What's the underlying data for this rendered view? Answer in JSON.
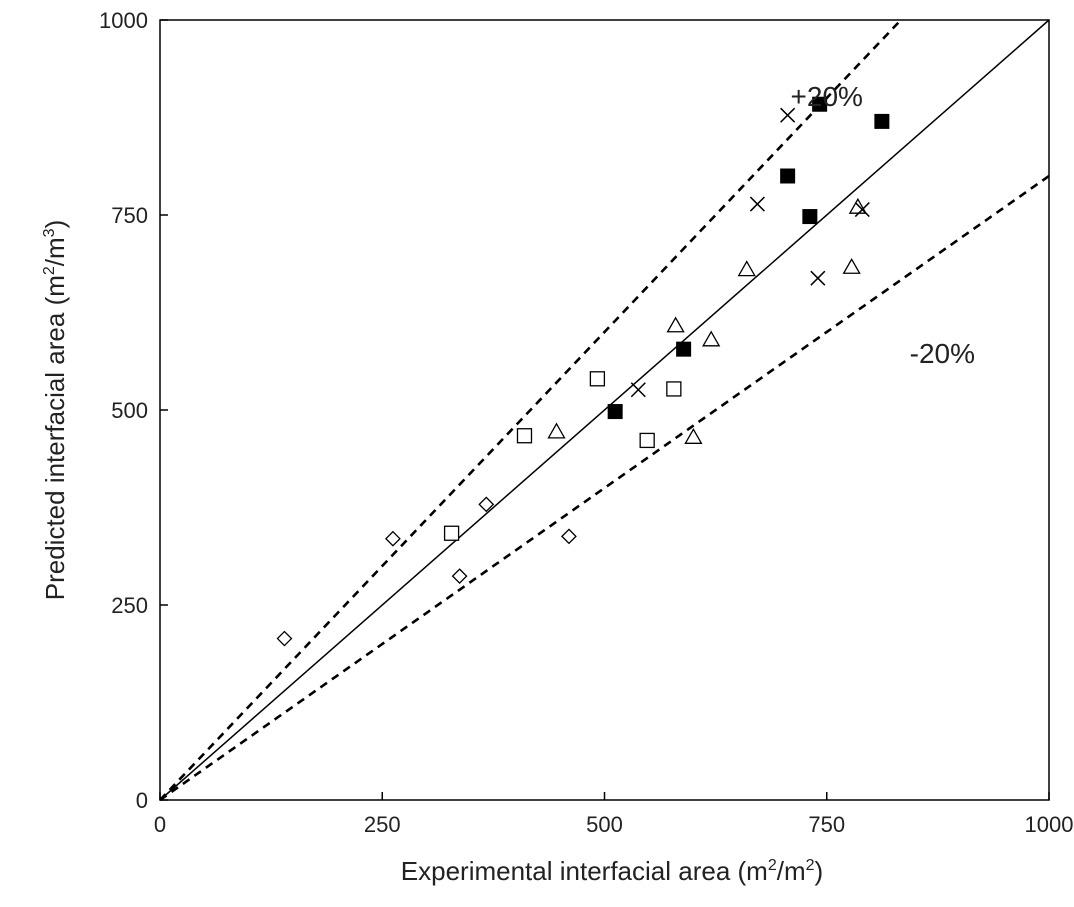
{
  "chart_data": {
    "type": "scatter",
    "title": "",
    "xlabel": {
      "prefix": "Experimental interfacial area (m",
      "sup1": "2",
      "mid": "/m",
      "sup2": "2",
      "suffix": ")"
    },
    "ylabel": {
      "prefix": "Predicted interfacial area (m",
      "sup1": "2",
      "mid": "/m",
      "sup2": "3",
      "suffix": ")"
    },
    "xlim": [
      0,
      1000
    ],
    "ylim": [
      0,
      1000
    ],
    "xticks": [
      0,
      250,
      500,
      750,
      1000
    ],
    "yticks": [
      0,
      250,
      500,
      750,
      1000
    ],
    "grid": false,
    "legend": "none",
    "reference_lines": [
      {
        "label": "+20%",
        "slope": 1.2,
        "style": "dashed",
        "label_at": [
          750,
          890
        ]
      },
      {
        "label": "",
        "slope": 1.0,
        "style": "solid"
      },
      {
        "label": "-20%",
        "slope": 0.8,
        "style": "dashed",
        "label_at": [
          880,
          560
        ]
      }
    ],
    "series": [
      {
        "marker": "diamond-open",
        "points": [
          [
            140,
            207
          ],
          [
            262,
            335
          ],
          [
            337,
            287
          ],
          [
            367,
            379
          ],
          [
            460,
            338
          ]
        ]
      },
      {
        "marker": "square-open",
        "points": [
          [
            328,
            342
          ],
          [
            410,
            467
          ],
          [
            492,
            540
          ],
          [
            548,
            461
          ],
          [
            578,
            527
          ]
        ]
      },
      {
        "marker": "triangle-open",
        "points": [
          [
            446,
            472
          ],
          [
            580,
            608
          ],
          [
            600,
            465
          ],
          [
            620,
            590
          ],
          [
            660,
            680
          ],
          [
            778,
            683
          ],
          [
            785,
            760
          ]
        ]
      },
      {
        "marker": "cross",
        "points": [
          [
            538,
            526
          ],
          [
            672,
            764
          ],
          [
            706,
            878
          ],
          [
            740,
            669
          ],
          [
            790,
            757
          ]
        ]
      },
      {
        "marker": "square-filled",
        "points": [
          [
            512,
            498
          ],
          [
            589,
            578
          ],
          [
            706,
            800
          ],
          [
            731,
            748
          ],
          [
            742,
            892
          ],
          [
            812,
            870
          ]
        ]
      }
    ]
  }
}
